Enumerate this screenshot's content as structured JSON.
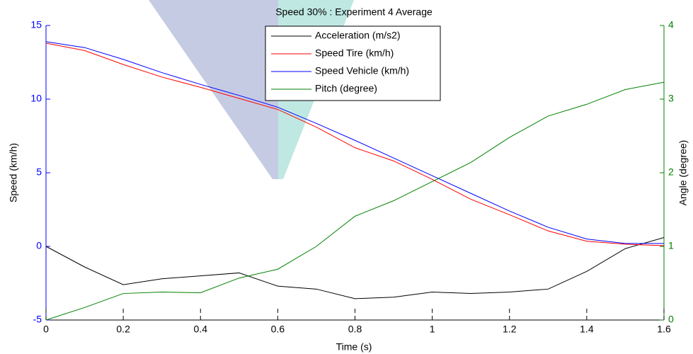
{
  "chart_data": {
    "type": "line",
    "title": "Speed 30% : Experiment 4 Average",
    "xlabel": "Time (s)",
    "ylabel": "Speed (km/h)",
    "y2label": "Angle (degree)",
    "x": [
      0,
      0.1,
      0.2,
      0.3,
      0.4,
      0.5,
      0.6,
      0.7,
      0.8,
      0.9,
      1.0,
      1.1,
      1.2,
      1.3,
      1.4,
      1.5,
      1.6
    ],
    "xlim": [
      0,
      1.6
    ],
    "xticks": [
      0,
      0.2,
      0.4,
      0.6,
      0.8,
      1,
      1.2,
      1.4,
      1.6
    ],
    "ylim": [
      -5,
      15
    ],
    "yticks": [
      -5,
      0,
      5,
      10,
      15
    ],
    "ycolor": "#0000ff",
    "y2lim": [
      0,
      4
    ],
    "y2ticks": [
      0,
      1,
      2,
      3,
      4
    ],
    "y2color": "#008000",
    "legend": "top-center",
    "series": [
      {
        "name": "Acceleration (m/s2)",
        "color": "#000000",
        "values": [
          0,
          -1.4,
          -2.6,
          -2.2,
          -2.0,
          -1.8,
          -2.7,
          -2.9,
          -3.55,
          -3.45,
          -3.1,
          -3.2,
          -3.1,
          -2.9,
          -1.7,
          -0.15,
          0.6
        ]
      },
      {
        "name": "Speed Tire (km/h)",
        "color": "#ff0000",
        "values": [
          13.8,
          13.3,
          12.35,
          11.5,
          10.8,
          10.05,
          9.3,
          8.1,
          6.7,
          5.8,
          4.55,
          3.2,
          2.15,
          1.05,
          0.35,
          0.15,
          0.05
        ]
      },
      {
        "name": "Speed Vehicle (km/h)",
        "color": "#0000ff",
        "values": [
          13.9,
          13.5,
          12.7,
          11.8,
          11.0,
          10.25,
          9.45,
          8.35,
          7.2,
          6.0,
          4.8,
          3.6,
          2.4,
          1.3,
          0.5,
          0.2,
          0.2
        ]
      },
      {
        "name": "Pitch (degree)",
        "color": "#008000",
        "axis": "y2",
        "values": [
          0,
          0.17,
          0.36,
          0.38,
          0.37,
          0.57,
          0.69,
          1.0,
          1.41,
          1.62,
          1.88,
          2.14,
          2.48,
          2.77,
          2.93,
          3.13,
          3.23
        ]
      }
    ]
  }
}
